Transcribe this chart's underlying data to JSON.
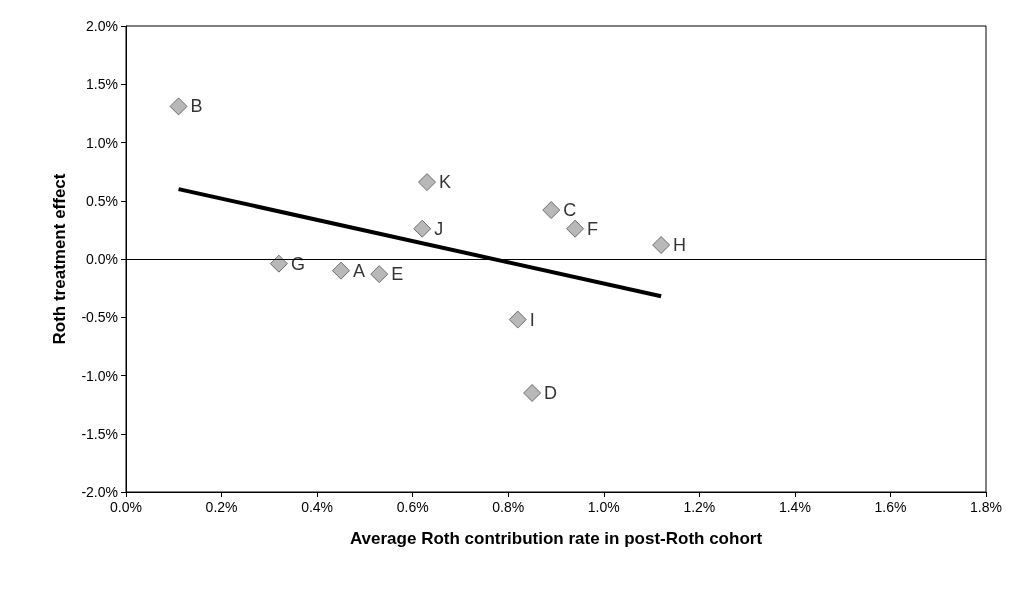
{
  "chart_data": {
    "type": "scatter",
    "xlabel": "Average Roth contribution rate in post-Roth cohort",
    "ylabel": "Roth treatment effect",
    "xlim": [
      0,
      1.8
    ],
    "xticks": [
      {
        "value": 0,
        "label": "0.0%"
      },
      {
        "value": 0.2,
        "label": "0.2%"
      },
      {
        "value": 0.4,
        "label": "0.4%"
      },
      {
        "value": 0.6,
        "label": "0.6%"
      },
      {
        "value": 0.8,
        "label": "0.8%"
      },
      {
        "value": 1.0,
        "label": "1.0%"
      },
      {
        "value": 1.2,
        "label": "1.2%"
      },
      {
        "value": 1.4,
        "label": "1.4%"
      },
      {
        "value": 1.6,
        "label": "1.6%"
      },
      {
        "value": 1.8,
        "label": "1.8%"
      }
    ],
    "ylim": [
      -2,
      2
    ],
    "yticks": [
      {
        "value": -2,
        "label": "-2.0%"
      },
      {
        "value": -1.5,
        "label": "-1.5%"
      },
      {
        "value": -1,
        "label": "-1.0%"
      },
      {
        "value": -0.5,
        "label": "-0.5%"
      },
      {
        "value": 0,
        "label": "0.0%"
      },
      {
        "value": 0.5,
        "label": "0.5%"
      },
      {
        "value": 1,
        "label": "1.0%"
      },
      {
        "value": 1.5,
        "label": "1.5%"
      },
      {
        "value": 2,
        "label": "2.0%"
      }
    ],
    "grid": false,
    "ref_lines": [
      {
        "axis": "y",
        "value": 0,
        "color": "#000000"
      }
    ],
    "series": [
      {
        "marker": "diamond",
        "color": "#a6a6a6",
        "x": [
          0.11,
          0.32,
          0.45,
          0.53,
          0.63,
          0.62,
          0.89,
          0.94,
          1.12,
          0.82,
          0.85
        ],
        "values": [
          1.31,
          -0.04,
          -0.1,
          -0.13,
          0.66,
          0.26,
          0.42,
          0.26,
          0.12,
          -0.52,
          -1.15
        ]
      },
      {
        "type": "line",
        "color": "#000000",
        "x": [
          0.11,
          1.12
        ],
        "values": [
          0.6,
          -0.32
        ]
      }
    ],
    "annotations": [
      {
        "text": "B",
        "x": 0.11,
        "y": 1.31
      },
      {
        "text": "G",
        "x": 0.32,
        "y": -0.04
      },
      {
        "text": "A",
        "x": 0.45,
        "y": -0.1
      },
      {
        "text": "E",
        "x": 0.53,
        "y": -0.13
      },
      {
        "text": "K",
        "x": 0.63,
        "y": 0.66
      },
      {
        "text": "J",
        "x": 0.62,
        "y": 0.26
      },
      {
        "text": "C",
        "x": 0.89,
        "y": 0.42
      },
      {
        "text": "F",
        "x": 0.94,
        "y": 0.26
      },
      {
        "text": "H",
        "x": 1.12,
        "y": 0.12
      },
      {
        "text": "I",
        "x": 0.82,
        "y": -0.52
      },
      {
        "text": "D",
        "x": 0.85,
        "y": -1.15
      }
    ]
  }
}
